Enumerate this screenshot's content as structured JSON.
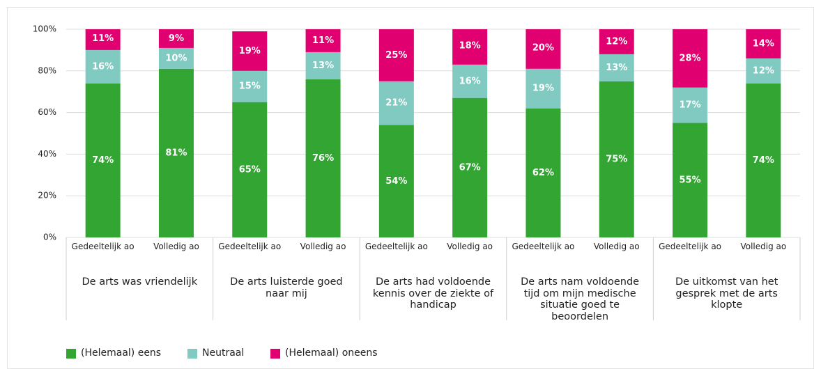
{
  "chart_data": {
    "type": "stacked-bar",
    "groups": [
      "De arts was vriendelijk",
      "De arts luisterde goed naar mij",
      "De arts had voldoende kennis over de ziekte of handicap",
      "De arts nam voldoende tijd om mijn medische situatie goed te beoordelen",
      "De uitkomst van het gesprek met de arts klopte"
    ],
    "categories": [
      "Gedeeltelijk ao",
      "Volledig ao",
      "Gedeeltelijk ao",
      "Volledig ao",
      "Gedeeltelijk ao",
      "Volledig ao",
      "Gedeeltelijk ao",
      "Volledig ao",
      "Gedeeltelijk ao",
      "Volledig ao"
    ],
    "series": [
      {
        "name": "(Helemaal) eens",
        "color": "#33a532",
        "values": [
          74,
          81,
          65,
          76,
          54,
          67,
          62,
          75,
          55,
          74
        ],
        "value_labels": [
          "74%",
          "81%",
          "65%",
          "76%",
          "54%",
          "67%",
          "62%",
          "75%",
          "55%",
          "74%"
        ]
      },
      {
        "name": "Neutraal",
        "color": "#80cac1",
        "values": [
          16,
          10,
          15,
          13,
          21,
          16,
          19,
          13,
          17,
          12
        ],
        "value_labels": [
          "16%",
          "10%",
          "15%",
          "13%",
          "21%",
          "16%",
          "19%",
          "13%",
          "17%",
          "12%"
        ]
      },
      {
        "name": "(Helemaal) oneens",
        "color": "#e0006f",
        "values": [
          11,
          9,
          19,
          11,
          25,
          18,
          20,
          12,
          28,
          14
        ],
        "value_labels": [
          "11%",
          "9%",
          "19%",
          "11%",
          "25%",
          "18%",
          "20%",
          "12%",
          "28%",
          "14%"
        ]
      }
    ],
    "ylim": [
      0,
      100
    ],
    "yticks": [
      {
        "value": 0,
        "label": "0%"
      },
      {
        "value": 20,
        "label": "20%"
      },
      {
        "value": 40,
        "label": "40%"
      },
      {
        "value": 60,
        "label": "60%"
      },
      {
        "value": 80,
        "label": "80%"
      },
      {
        "value": 100,
        "label": "100%"
      }
    ],
    "grid": true,
    "legend": "bottom-left"
  }
}
